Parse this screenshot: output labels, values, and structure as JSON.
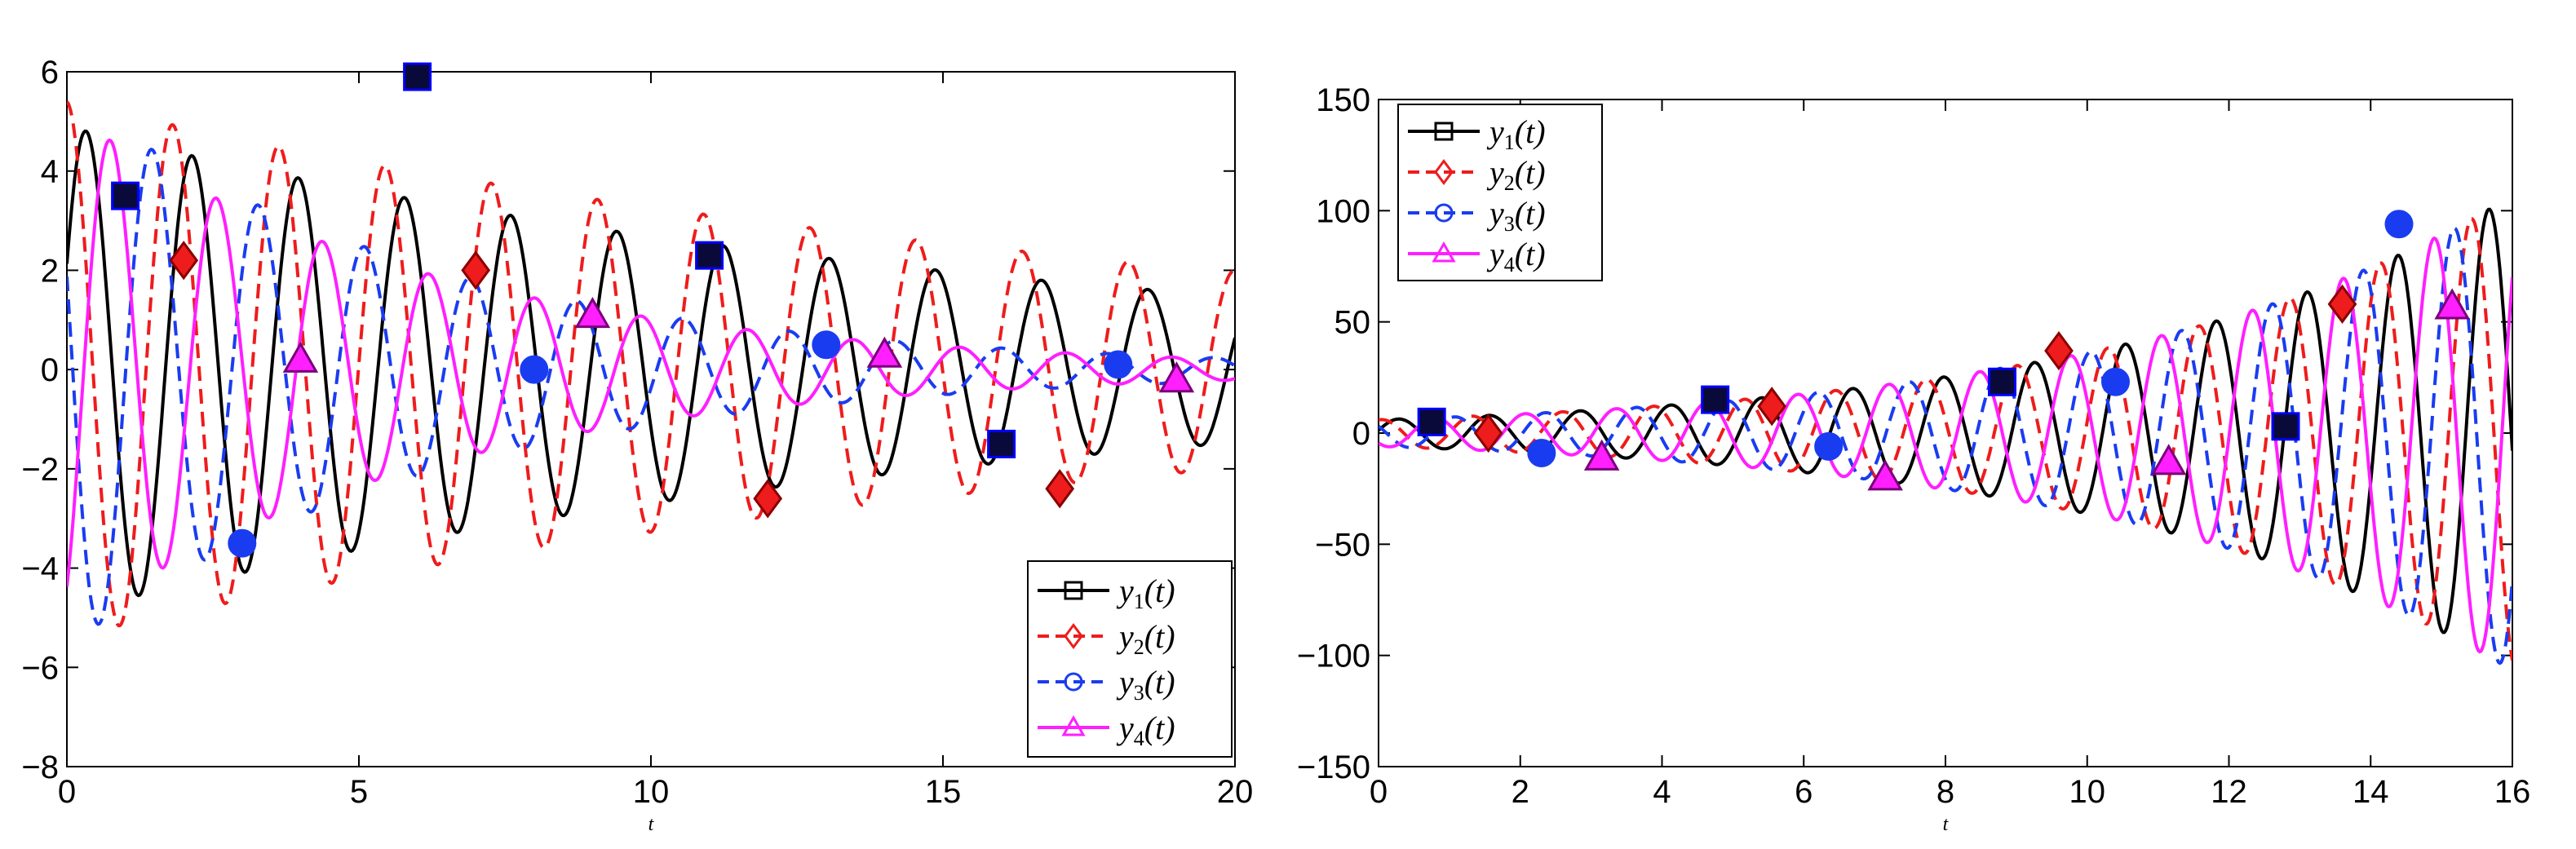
{
  "chart_data": [
    {
      "type": "line",
      "title": "",
      "xlabel": "t",
      "ylabel": "",
      "xlim": [
        0,
        20
      ],
      "ylim": [
        -8,
        6
      ],
      "xticks": [
        "0",
        "5",
        "10",
        "15",
        "20"
      ],
      "yticks": [
        "6",
        "4",
        "2",
        "0",
        "−2",
        "−4",
        "−6",
        "−8"
      ],
      "legend_position": "bottom-right",
      "series": [
        {
          "name": "y1(t)",
          "base": "y",
          "sub": "1",
          "arg": "(t)",
          "color": "#000000",
          "dash": "solid",
          "marker": "square",
          "amp0": 4.9,
          "decay": 0.06,
          "freq": 0.55,
          "phase": -0.45,
          "markers_x": [
            1,
            6,
            11,
            16
          ],
          "markers_y": [
            3.5,
            5.9,
            2.3,
            -1.5
          ]
        },
        {
          "name": "y2(t)",
          "base": "y",
          "sub": "2",
          "arg": "(t)",
          "color": "#ee1c1c",
          "dash": "dashed",
          "marker": "diamond",
          "amp0": 5.4,
          "decay": 0.05,
          "freq": 0.55,
          "phase": -1.6,
          "markers_x": [
            2,
            7,
            12,
            17
          ],
          "markers_y": [
            2.2,
            2.0,
            -2.6,
            -2.4
          ]
        },
        {
          "name": "y3(t)",
          "base": "y",
          "sub": "3",
          "arg": "(t)",
          "color": "#1a3cf0",
          "dash": "dashed",
          "marker": "circle",
          "amp0": 5.6,
          "decay": 0.16,
          "freq": 0.55,
          "phase": -2.8,
          "markers_x": [
            3,
            8,
            13,
            18
          ],
          "markers_y": [
            -3.5,
            0.0,
            0.5,
            0.1
          ]
        },
        {
          "name": "y4(t)",
          "base": "y",
          "sub": "4",
          "arg": "(t)",
          "color": "#ff1fff",
          "dash": "solid",
          "marker": "triangle",
          "amp0": 5.2,
          "decay": 0.16,
          "freq": 0.55,
          "phase": 1.0,
          "markers_x": [
            4,
            9,
            14,
            19
          ],
          "markers_y": [
            0.2,
            1.1,
            0.3,
            -0.2
          ]
        }
      ]
    },
    {
      "type": "line",
      "title": "",
      "xlabel": "t",
      "ylabel": "",
      "xlim": [
        0,
        16
      ],
      "ylim": [
        -150,
        150
      ],
      "xticks": [
        "0",
        "2",
        "4",
        "6",
        "8",
        "10",
        "12",
        "14",
        "16"
      ],
      "yticks": [
        "150",
        "100",
        "50",
        "0",
        "−50",
        "−100",
        "−150"
      ],
      "legend_position": "top-left",
      "series": [
        {
          "name": "y1(t)",
          "base": "y",
          "sub": "1",
          "arg": "(t)",
          "color": "#000000",
          "dash": "solid",
          "marker": "square",
          "amp0": 6,
          "decay": -0.18,
          "freq": 0.78,
          "phase": -0.2,
          "markers_x": [
            0.75,
            4.75,
            8.8,
            12.8
          ],
          "markers_y": [
            5,
            15,
            23,
            3
          ]
        },
        {
          "name": "y2(t)",
          "base": "y",
          "sub": "2",
          "arg": "(t)",
          "color": "#ee1c1c",
          "dash": "dashed",
          "marker": "diamond",
          "amp0": 6,
          "decay": -0.18,
          "freq": 0.78,
          "phase": -1.4,
          "markers_x": [
            1.55,
            5.55,
            9.6,
            13.6
          ],
          "markers_y": [
            0,
            12,
            37,
            58
          ]
        },
        {
          "name": "y3(t)",
          "base": "y",
          "sub": "3",
          "arg": "(t)",
          "color": "#1a3cf0",
          "dash": "dashed",
          "marker": "circle",
          "amp0": 6,
          "decay": -0.18,
          "freq": 0.78,
          "phase": -2.6,
          "markers_x": [
            2.3,
            6.35,
            10.4,
            14.4
          ],
          "markers_y": [
            -9,
            -6,
            23,
            94
          ]
        },
        {
          "name": "y4(t)",
          "base": "y",
          "sub": "4",
          "arg": "(t)",
          "color": "#ff1fff",
          "dash": "solid",
          "marker": "triangle",
          "amp0": 6,
          "decay": -0.18,
          "freq": 0.78,
          "phase": 2.3,
          "markers_x": [
            3.15,
            7.15,
            11.15,
            15.15
          ],
          "markers_y": [
            -11,
            -20,
            -13,
            57
          ]
        }
      ]
    }
  ]
}
